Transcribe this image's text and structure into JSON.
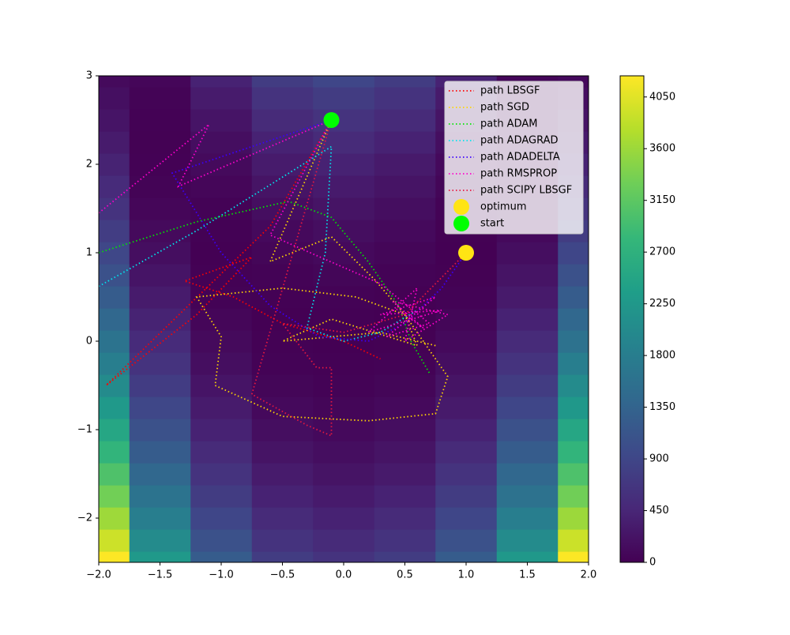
{
  "chart_data": {
    "type": "contour",
    "colormap": "viridis",
    "x": [
      -2,
      -1.5,
      -1,
      -0.5,
      0,
      0.5,
      1,
      1.5,
      2
    ],
    "y": [
      -2.5,
      -2.25,
      -2,
      -1.75,
      -1.5,
      -1.25,
      -1,
      -0.75,
      -0.5,
      -0.25,
      0,
      0.25,
      0.5,
      0.75,
      1,
      1.25,
      1.5,
      1.75,
      2,
      2.25,
      2.5,
      2.75,
      3
    ],
    "z": [
      [
        4234,
        2262.5,
        1229,
        758.5,
        626,
        756.5,
        1225,
        2256.5,
        4226
      ],
      [
        3915.25,
        2031.25,
        1060.25,
        627.25,
        507.25,
        625.25,
        1056.25,
        2025.25,
        3907.25
      ],
      [
        3609,
        1812.5,
        904,
        508.5,
        401,
        506.5,
        900,
        1806.5,
        3601
      ],
      [
        3315.25,
        1606.25,
        760.25,
        402.25,
        307.25,
        400.25,
        756.25,
        1600.25,
        3307.25
      ],
      [
        3034,
        1412.5,
        629,
        308.5,
        226,
        306.5,
        625,
        1406.5,
        3026
      ],
      [
        2765.25,
        1231.25,
        510.25,
        227.25,
        157.25,
        225.25,
        506.25,
        1225.25,
        2757.25
      ],
      [
        2509,
        1062.5,
        404,
        158.5,
        101,
        156.5,
        400,
        1056.5,
        2501
      ],
      [
        2265.25,
        906.25,
        310.25,
        102.25,
        57.25,
        100.25,
        306.25,
        900.25,
        2257.25
      ],
      [
        2034,
        762.5,
        229,
        58.5,
        26,
        56.5,
        225,
        756.5,
        2026
      ],
      [
        1815.25,
        631.25,
        160.25,
        27.25,
        7.25,
        25.25,
        156.25,
        625.25,
        1807.25
      ],
      [
        1609,
        512.5,
        104,
        8.5,
        1,
        6.5,
        100,
        506.5,
        1601
      ],
      [
        1415.25,
        406.25,
        60.25,
        2.25,
        7.25,
        0.25,
        56.25,
        400.25,
        1407.25
      ],
      [
        1234,
        312.5,
        29,
        8.5,
        26,
        6.5,
        25,
        306.5,
        1226
      ],
      [
        1065.25,
        231.25,
        10.25,
        27.25,
        57.25,
        25.25,
        6.25,
        225.25,
        1057.25
      ],
      [
        909,
        162.5,
        4,
        58.5,
        101,
        56.5,
        0,
        156.5,
        901
      ],
      [
        765.25,
        106.25,
        10.25,
        102.25,
        157.25,
        100.25,
        6.25,
        100.25,
        757.25
      ],
      [
        634,
        62.5,
        29,
        158.5,
        226,
        156.5,
        25,
        56.5,
        626
      ],
      [
        515.25,
        31.25,
        60.25,
        227.25,
        307.25,
        225.25,
        56.25,
        25.25,
        507.25
      ],
      [
        409,
        12.5,
        104,
        308.5,
        401,
        306.5,
        100,
        6.5,
        401
      ],
      [
        315.25,
        6.25,
        160.25,
        402.25,
        507.25,
        400.25,
        156.25,
        0.25,
        307.25
      ],
      [
        234,
        12.5,
        229,
        508.5,
        626,
        506.5,
        225,
        6.5,
        226
      ],
      [
        165.25,
        31.25,
        310.25,
        627.25,
        757.25,
        625.25,
        306.25,
        25.25,
        157.25
      ],
      [
        109,
        62.5,
        404,
        758.5,
        901,
        756.5,
        400,
        56.5,
        101
      ]
    ],
    "clim": [
      0,
      4234
    ],
    "cticks": [
      0,
      450,
      900,
      1350,
      1800,
      2250,
      2700,
      3150,
      3600,
      4050
    ],
    "xlim": [
      -2,
      2
    ],
    "ylim": [
      -2.5,
      3
    ],
    "xticks": [
      {
        "value": -2,
        "label": "−2.0"
      },
      {
        "value": -1.5,
        "label": "−1.5"
      },
      {
        "value": -1,
        "label": "−1.0"
      },
      {
        "value": -0.5,
        "label": "−0.5"
      },
      {
        "value": 0,
        "label": "0.0"
      },
      0.5,
      {
        "value": 1,
        "label": "1.0"
      },
      1.5,
      {
        "value": 2,
        "label": "2.0"
      }
    ],
    "yticks": [
      {
        "value": -2,
        "label": "−2"
      },
      {
        "value": -1,
        "label": "−1"
      },
      0,
      1,
      2,
      3
    ],
    "legend": "upper right",
    "series": [
      {
        "name": "path LBSGF",
        "color": "#ff0000",
        "mode": "line",
        "x": [
          -0.1,
          -0.6,
          -1.94,
          -1.2,
          -0.75,
          -1.3,
          -0.9,
          -0.5,
          0,
          0.3
        ],
        "y": [
          2.5,
          1.3,
          -0.5,
          0.3,
          0.95,
          0.68,
          0.5,
          0.2,
          0,
          -0.2
        ]
      },
      {
        "name": "path SGD",
        "color": "#ffd700",
        "mode": "line",
        "x": [
          -0.1,
          -0.6,
          -0.1,
          0.25,
          0.5,
          0.6,
          0.85,
          0.75,
          0.2,
          -0.5,
          -1.05,
          -1.0,
          -1.2,
          -0.5,
          0.1,
          0.5,
          0.6,
          -0.1,
          -0.5,
          0.3,
          0.75
        ],
        "y": [
          2.5,
          0.9,
          1.18,
          0.7,
          0.3,
          0.1,
          -0.4,
          -0.82,
          -0.9,
          -0.85,
          -0.5,
          0.05,
          0.5,
          0.6,
          0.5,
          0.3,
          -0.05,
          0.25,
          0.0,
          0.1,
          -0.05
        ]
      },
      {
        "name": "path ADAM",
        "color": "#00e600",
        "mode": "line",
        "x": [
          -2,
          -1.2,
          -0.45,
          -0.1,
          0.2,
          0.45,
          0.55,
          0.7
        ],
        "y": [
          1.0,
          1.35,
          1.58,
          1.4,
          0.9,
          0.4,
          0.0,
          -0.36
        ]
      },
      {
        "name": "path ADAGRAD",
        "color": "#00e5ee",
        "mode": "line",
        "x": [
          -2,
          -1.2,
          -0.1,
          -0.15,
          -0.3,
          0,
          0.3,
          0.6
        ],
        "y": [
          0.62,
          1.25,
          2.2,
          1.0,
          0.15,
          0,
          0.1,
          0.35
        ]
      },
      {
        "name": "path ADADELTA",
        "color": "#3a00ff",
        "mode": "line",
        "x": [
          -0.1,
          -1.4,
          -1.0,
          -0.6,
          -0.2,
          0.2,
          0.5,
          0.8,
          1
        ],
        "y": [
          2.5,
          1.9,
          1.0,
          0.4,
          0.05,
          0.0,
          0.2,
          0.6,
          1
        ]
      },
      {
        "name": "path RMSPROP",
        "color": "#ff00cc",
        "mode": "line",
        "x": [
          -2,
          -1.1,
          -1.35,
          -0.1,
          -0.6,
          0.3,
          0.7,
          0.35,
          0.75,
          0.3,
          0.8,
          0.2,
          0.6,
          0.5,
          0.85,
          0.4,
          0.65,
          0.45
        ],
        "y": [
          1.45,
          2.45,
          1.75,
          2.5,
          1.2,
          0.65,
          0.2,
          0.05,
          0.5,
          0.3,
          0.35,
          0.1,
          0.6,
          0.0,
          0.3,
          0.45,
          0.15,
          0.35
        ]
      },
      {
        "name": "path SCIPY LBSGF",
        "color": "#e8173f",
        "mode": "line",
        "x": [
          -0.1,
          -0.75,
          -0.3,
          -0.1,
          -0.1,
          -0.22,
          -0.5,
          0,
          0.5,
          1
        ],
        "y": [
          2.5,
          -0.6,
          -0.95,
          -1.07,
          -0.3,
          -0.3,
          0.2,
          0.1,
          0.3,
          1
        ]
      },
      {
        "name": "optimum",
        "color": "#ffe414",
        "mode": "marker",
        "x": [
          1
        ],
        "y": [
          1
        ]
      },
      {
        "name": "start",
        "color": "#00ff00",
        "mode": "marker",
        "x": [
          -0.1
        ],
        "y": [
          2.5
        ]
      }
    ]
  }
}
